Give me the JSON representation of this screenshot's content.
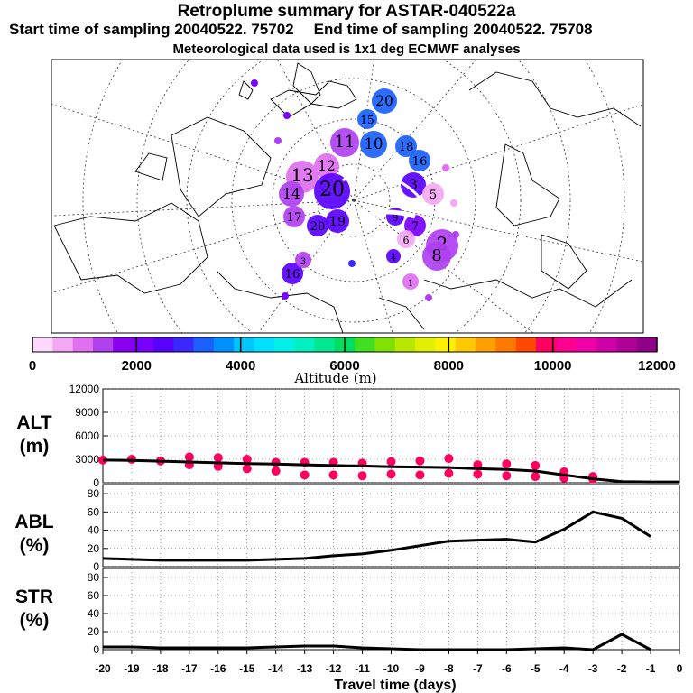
{
  "header": {
    "title": "Retroplume summary for ASTAR-040522a",
    "start_label": "Start time of sampling 20040522. 75702",
    "end_label": "End time of sampling 20040522. 75708",
    "met_label": "Meteorological data used is 1x1 deg ECMWF analyses"
  },
  "colorbar": {
    "label": "Altitude (m)",
    "tick_labels": [
      "0",
      "2000",
      "4000",
      "6000",
      "8000",
      "10000",
      "12000"
    ],
    "ticks": [
      0,
      2000,
      4000,
      6000,
      8000,
      10000,
      12000
    ],
    "colors": [
      "#ffd8ff",
      "#f4a8f4",
      "#e070f0",
      "#b040f0",
      "#8a00f0",
      "#7a00ff",
      "#5a00ff",
      "#3a28ff",
      "#1a60ff",
      "#0090ff",
      "#00c8ff",
      "#00e0ff",
      "#00f0e8",
      "#00f0c0",
      "#00e890",
      "#00e060",
      "#40e020",
      "#80e000",
      "#b8e800",
      "#e0f000",
      "#fff000",
      "#ffc800",
      "#ffa000",
      "#ff7800",
      "#ff4800",
      "#ff0060",
      "#ff0090",
      "#f000a8",
      "#d000a8",
      "#b00098",
      "#900088"
    ]
  },
  "map": {
    "plume_labels": [
      "20",
      "15",
      "11",
      "10",
      "12",
      "18",
      "16",
      "13",
      "14",
      "17",
      "19",
      "20",
      "3",
      "5",
      "7",
      "9",
      "2",
      "4",
      "6",
      "1",
      "8",
      "12",
      "20",
      "16",
      "3"
    ]
  },
  "panels": {
    "alt": {
      "label_line1": "ALT",
      "label_line2": "(m)"
    },
    "abl": {
      "label_line1": "ABL",
      "label_line2": "(%)"
    },
    "str": {
      "label_line1": "STR",
      "label_line2": "(%)"
    }
  },
  "x_axis_label": "Travel time (days)",
  "chart_data": [
    {
      "type": "line",
      "panel": "ALT",
      "ylabel": "ALT (m)",
      "xlabel": "Travel time (days)",
      "xlim": [
        -20,
        0
      ],
      "ylim": [
        0,
        12000
      ],
      "y_ticks": [
        0,
        3000,
        6000,
        9000,
        12000
      ],
      "x_ticks": [
        -20,
        -19,
        -18,
        -17,
        -16,
        -15,
        -14,
        -13,
        -12,
        -11,
        -10,
        -9,
        -8,
        -7,
        -6,
        -5,
        -4,
        -3,
        -2,
        -1,
        0
      ],
      "x_tick_labels": [
        "-20",
        "-19",
        "-18",
        "-17",
        "-16",
        "-15",
        "-14",
        "-13",
        "-12",
        "-11",
        "-10",
        "-9",
        "-8",
        "-7",
        "-6",
        "-5",
        "-4",
        "-3",
        "-2",
        "-1",
        "0"
      ],
      "series": [
        {
          "name": "mean altitude",
          "x": [
            -20,
            -19,
            -18,
            -17,
            -16,
            -15,
            -14,
            -13,
            -12,
            -11,
            -10,
            -9,
            -8,
            -7,
            -6,
            -5,
            -4,
            -3,
            -2,
            -1,
            0
          ],
          "y": [
            2900,
            2850,
            2750,
            2650,
            2550,
            2450,
            2400,
            2300,
            2200,
            2150,
            2050,
            2000,
            1950,
            1800,
            1700,
            1500,
            1000,
            500,
            150,
            100,
            100
          ]
        }
      ],
      "scatter": {
        "name": "cluster altitudes",
        "x": [
          -20,
          -19,
          -18,
          -17,
          -17,
          -16,
          -16,
          -15,
          -15,
          -14,
          -14,
          -13,
          -13,
          -12,
          -12,
          -11,
          -11,
          -10,
          -10,
          -9,
          -9,
          -8,
          -8,
          -7,
          -7,
          -6,
          -6,
          -5,
          -5,
          -4,
          -4,
          -3,
          -3
        ],
        "y": [
          2900,
          3000,
          2800,
          3300,
          2300,
          3200,
          2100,
          3000,
          1800,
          2600,
          1500,
          2600,
          1000,
          2600,
          1000,
          2500,
          900,
          2700,
          1100,
          2800,
          1000,
          3100,
          1200,
          2300,
          1100,
          2400,
          900,
          2200,
          800,
          1400,
          600,
          800,
          500
        ]
      }
    },
    {
      "type": "line",
      "panel": "ABL",
      "ylabel": "ABL (%)",
      "xlim": [
        -20,
        0
      ],
      "ylim": [
        0,
        90
      ],
      "y_ticks": [
        0,
        20,
        40,
        60,
        80
      ],
      "series": [
        {
          "name": "ABL fraction",
          "x": [
            -20,
            -19,
            -18,
            -17,
            -16,
            -15,
            -14,
            -13,
            -12,
            -11,
            -10,
            -9,
            -8,
            -7,
            -6,
            -5,
            -4,
            -3,
            -2,
            -1
          ],
          "y": [
            9,
            8,
            7,
            7,
            7,
            7,
            8,
            9,
            12,
            14,
            18,
            23,
            28,
            29,
            30,
            27,
            41,
            60,
            53,
            33
          ]
        }
      ]
    },
    {
      "type": "line",
      "panel": "STR",
      "ylabel": "STR (%)",
      "xlim": [
        -20,
        0
      ],
      "ylim": [
        0,
        90
      ],
      "y_ticks": [
        0,
        20,
        40,
        60,
        80
      ],
      "series": [
        {
          "name": "stratospheric fraction",
          "x": [
            -20,
            -19,
            -18,
            -17,
            -16,
            -15,
            -14,
            -13,
            -12,
            -11,
            -10,
            -9,
            -8,
            -7,
            -6,
            -5,
            -4,
            -3,
            -2,
            -1
          ],
          "y": [
            3,
            3,
            2,
            2,
            2,
            2,
            3,
            4,
            4,
            2,
            1,
            0,
            0,
            0,
            0,
            1,
            2,
            0,
            17,
            0
          ]
        }
      ]
    }
  ]
}
